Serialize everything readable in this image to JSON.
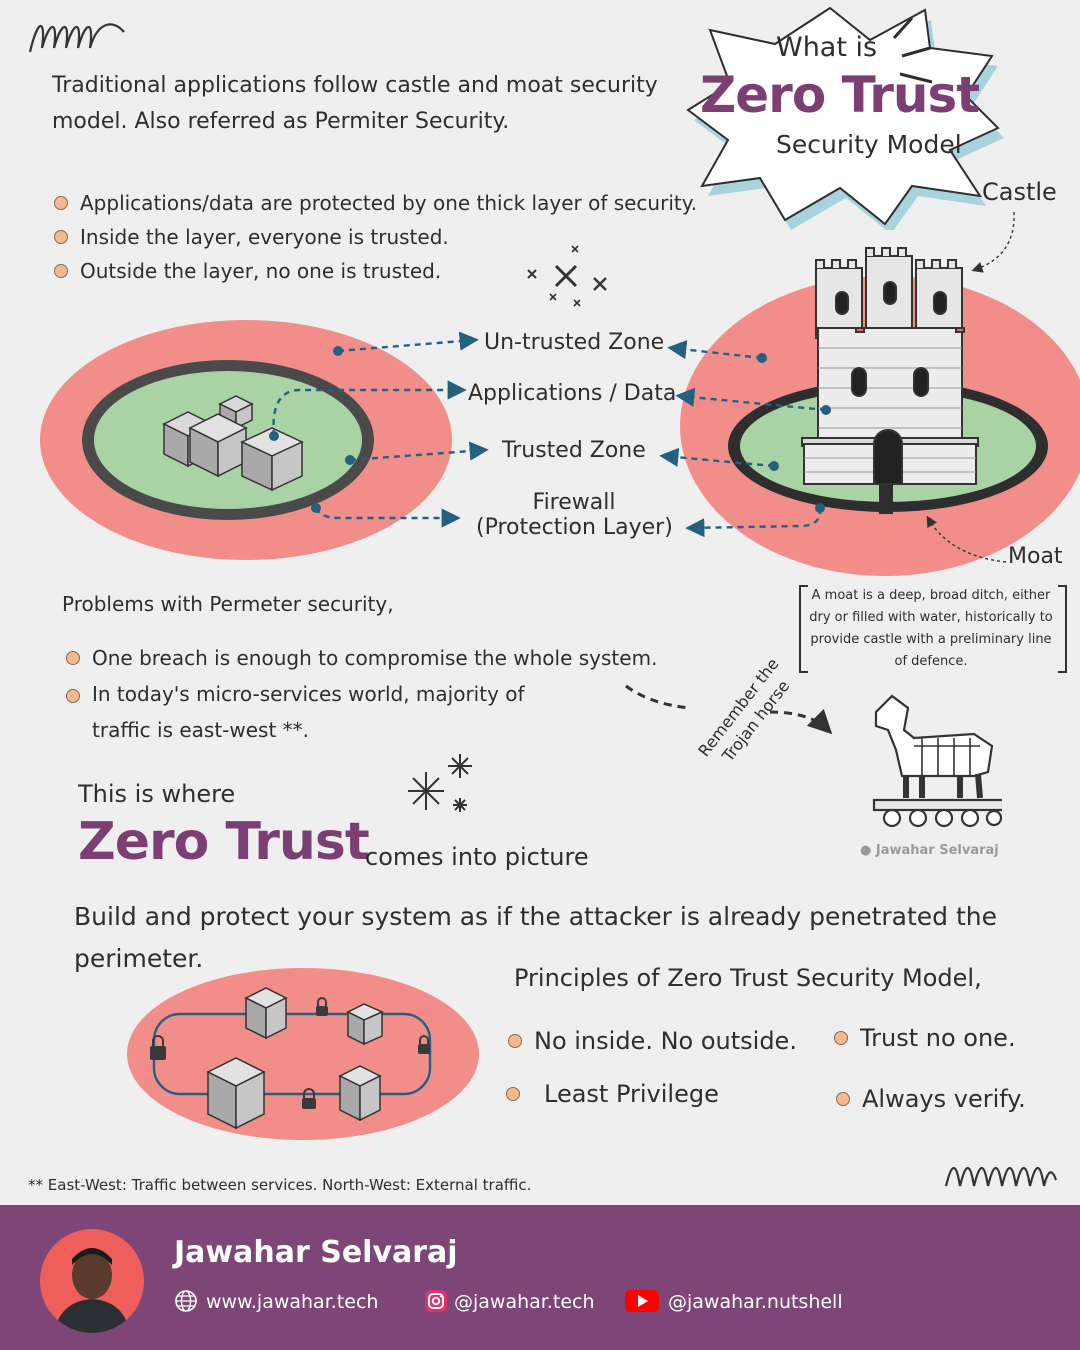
{
  "title": {
    "line1": "What is",
    "line2": "Zero Trust",
    "line3": "Security Model"
  },
  "intro": "Traditional applications follow castle and moat security model. Also referred as Permiter Security.",
  "top_bullets": [
    "Applications/data are protected by one thick layer of security.",
    "Inside the layer, everyone is trusted.",
    "Outside the layer, no one is trusted."
  ],
  "zones": {
    "untrusted": "Un-trusted Zone",
    "apps": "Applications / Data",
    "trusted": "Trusted Zone",
    "firewall_line1": "Firewall",
    "firewall_line2": "(Protection Layer)"
  },
  "castle_label": "Castle",
  "moat_label": "Moat",
  "moat_note": "A moat is a deep, broad ditch, either dry or filled with water, historically to provide castle with a preliminary line of defence.",
  "trojan_note": "Remember the Trojan horse",
  "watermark": "Jawahar Selvaraj",
  "problems_title": "Problems with Permeter security,",
  "problems": [
    "One breach is enough to compromise the whole system.",
    "In today's micro-services world, majority of traffic is east-west **."
  ],
  "where": {
    "line1": "This is where",
    "big": "Zero Trust",
    "rest": "comes into picture"
  },
  "build": "Build and protect your system as if the attacker is already penetrated the perimeter.",
  "principles_title": "Principles of Zero Trust Security Model,",
  "principles": [
    "No inside. No outside.",
    "Trust no one.",
    "Least Privilege",
    "Always verify."
  ],
  "footnote": "** East-West: Traffic between services. North-West: External traffic.",
  "footer": {
    "name": "Jawahar Selvaraj",
    "website": "www.jawahar.tech",
    "instagram": "@jawahar.tech",
    "youtube": "@jawahar.nutshell"
  },
  "colors": {
    "accent_purple": "#7b3f73",
    "footer_bg": "#7e4677",
    "ring_pink": "#f28e8a",
    "zone_green": "#a9d3a4",
    "arrow_blue": "#24607f",
    "bullet_orange": "#f4b98f"
  }
}
